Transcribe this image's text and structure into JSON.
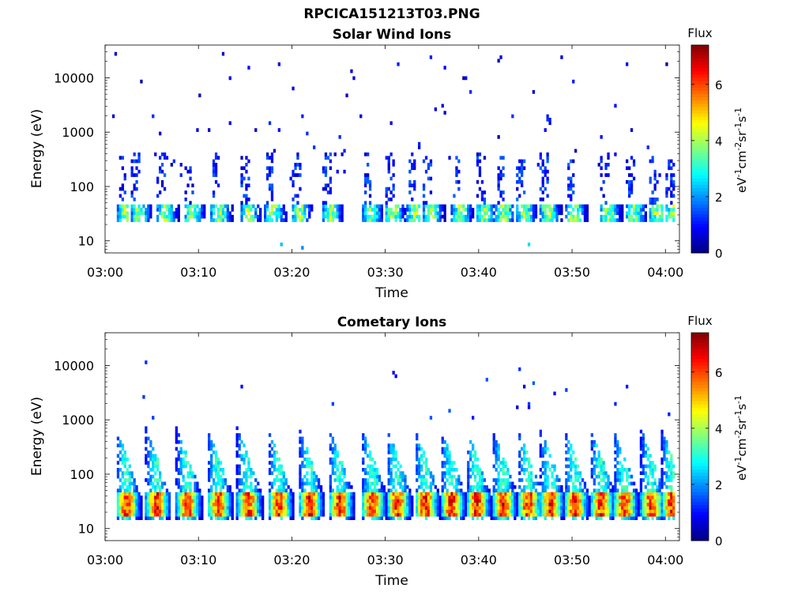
{
  "figure_title": "RPCICA151213T03.PNG",
  "chart_data": [
    {
      "type": "heatmap",
      "title": "Solar Wind Ions",
      "xlabel": "Time",
      "ylabel": "Energy (eV)",
      "x_tick_labels": [
        "03:00",
        "03:10",
        "03:20",
        "03:30",
        "03:40",
        "03:50",
        "04:00"
      ],
      "x_tick_minutes": [
        0,
        10,
        20,
        30,
        40,
        50,
        60
      ],
      "xlim_minutes": [
        0,
        61.5
      ],
      "y_scale": "log",
      "y_tick_labels": [
        "10",
        "100",
        "1000",
        "10000"
      ],
      "y_tick_values": [
        10,
        100,
        1000,
        10000
      ],
      "ylim": [
        6,
        40000
      ],
      "colorbar": {
        "title": "Flux",
        "label": "eV-1cm-2sr-1s-1",
        "ticks": [
          "0",
          "2",
          "4",
          "6"
        ],
        "range": [
          0,
          7.4
        ]
      },
      "burst_times_minutes": [
        1.6,
        3.0,
        5.8,
        8.7,
        11.6,
        14.7,
        17.4,
        20.2,
        23.5,
        27.9,
        30.2,
        32.6,
        34.3,
        37.4,
        40.0,
        42.1,
        44.3,
        46.8,
        49.6,
        53.3,
        56.0,
        58.5,
        60.2
      ],
      "band_energy_ev": [
        22,
        50
      ],
      "band_peak_flux": 4.8,
      "background": "sparse single-count pixels at 100–30000 eV with flux ~0.5–2"
    },
    {
      "type": "heatmap",
      "title": "Cometary Ions",
      "xlabel": "Time",
      "ylabel": "Energy (eV)",
      "x_tick_labels": [
        "03:00",
        "03:10",
        "03:20",
        "03:30",
        "03:40",
        "03:50",
        "04:00"
      ],
      "x_tick_minutes": [
        0,
        10,
        20,
        30,
        40,
        50,
        60
      ],
      "xlim_minutes": [
        0,
        61.5
      ],
      "y_scale": "log",
      "y_tick_labels": [
        "10",
        "100",
        "1000",
        "10000"
      ],
      "y_tick_values": [
        10,
        100,
        1000,
        10000
      ],
      "ylim": [
        6,
        40000
      ],
      "colorbar": {
        "title": "Flux",
        "label": "eV-1cm-2sr-1s-1",
        "ticks": [
          "0",
          "2",
          "4",
          "6"
        ],
        "range": [
          0,
          7.4
        ]
      },
      "burst_times_minutes": [
        1.6,
        4.8,
        8.1,
        11.4,
        14.6,
        17.9,
        21.2,
        24.4,
        27.9,
        30.6,
        33.6,
        36.4,
        39.1,
        41.9,
        44.6,
        47.0,
        49.6,
        52.4,
        54.9,
        57.8,
        60.0
      ],
      "band_energy_ev": [
        18,
        45
      ],
      "band_peak_flux": 6.6,
      "burst_max_energy_ev": 400,
      "background": "sparse single-count pixels at 1000–12000 eV with flux ~0.5–2"
    }
  ]
}
